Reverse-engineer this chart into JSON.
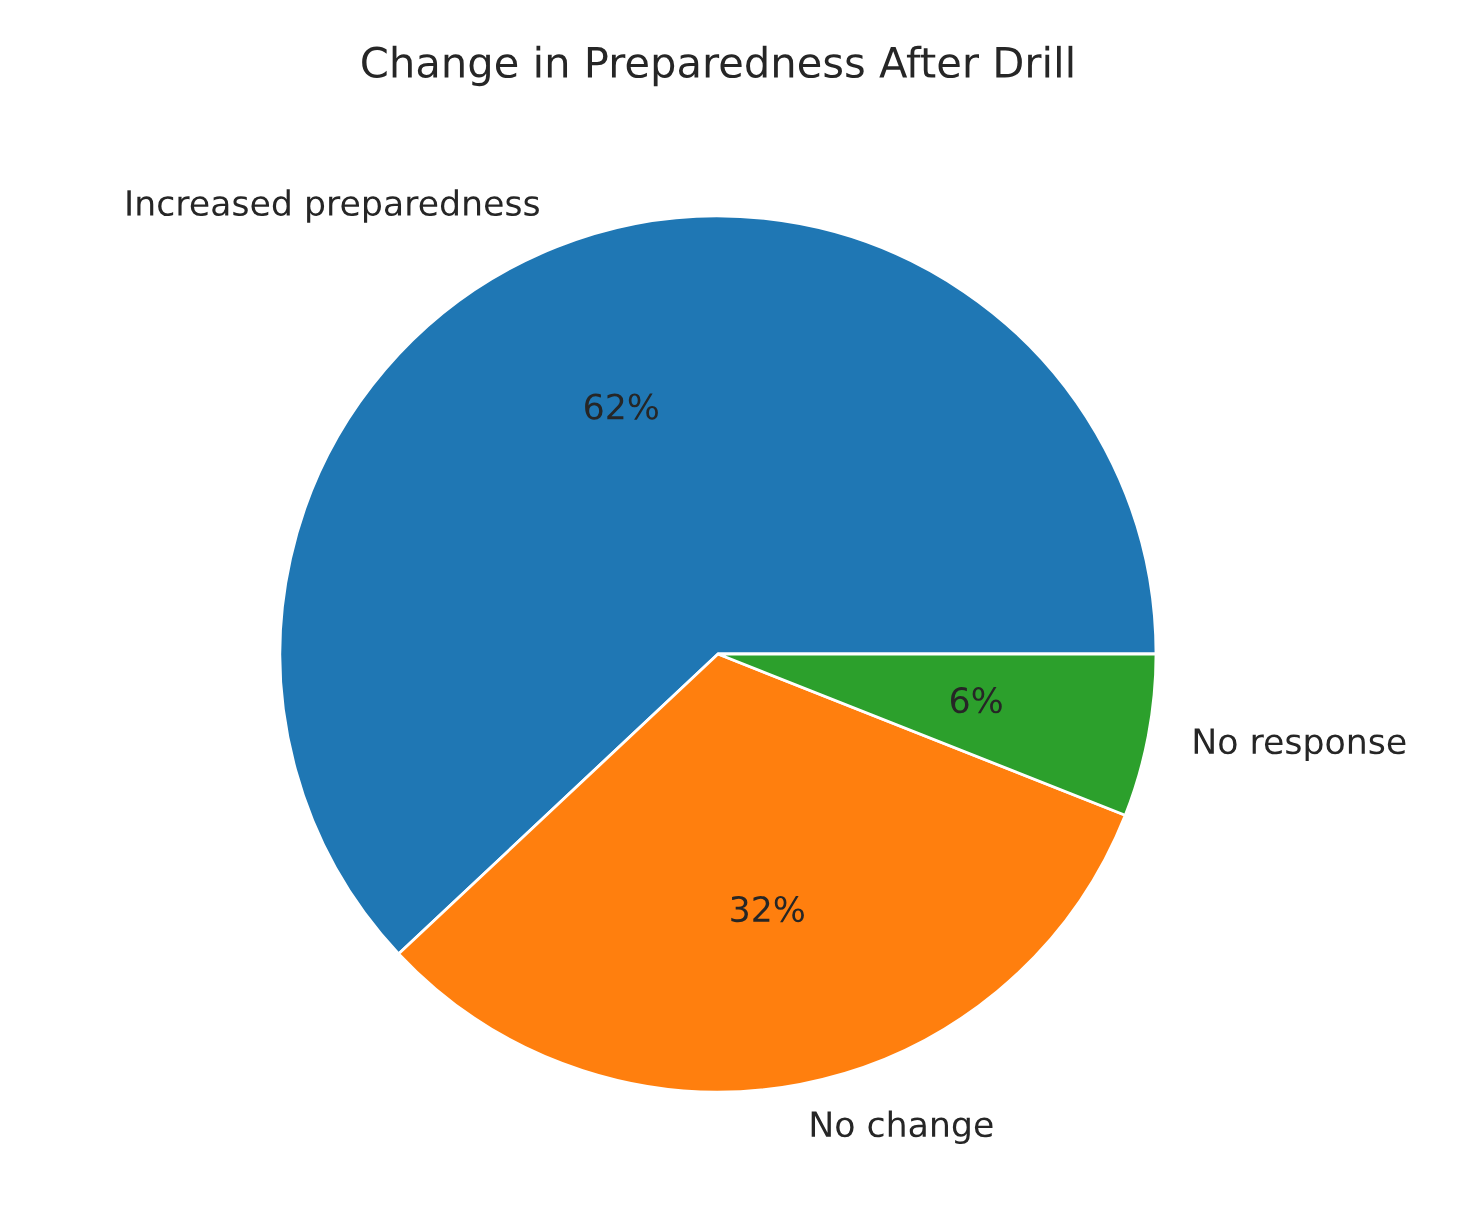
{
  "chart_data": {
    "type": "pie",
    "title": "Change in Preparedness After Drill",
    "categories": [
      "Increased preparedness",
      "No change",
      "No response"
    ],
    "values": [
      62,
      32,
      6
    ],
    "colors": [
      "#1f77b4",
      "#ff7f0e",
      "#2ca02c"
    ],
    "value_labels": [
      "62%",
      "32%",
      "6%"
    ]
  }
}
